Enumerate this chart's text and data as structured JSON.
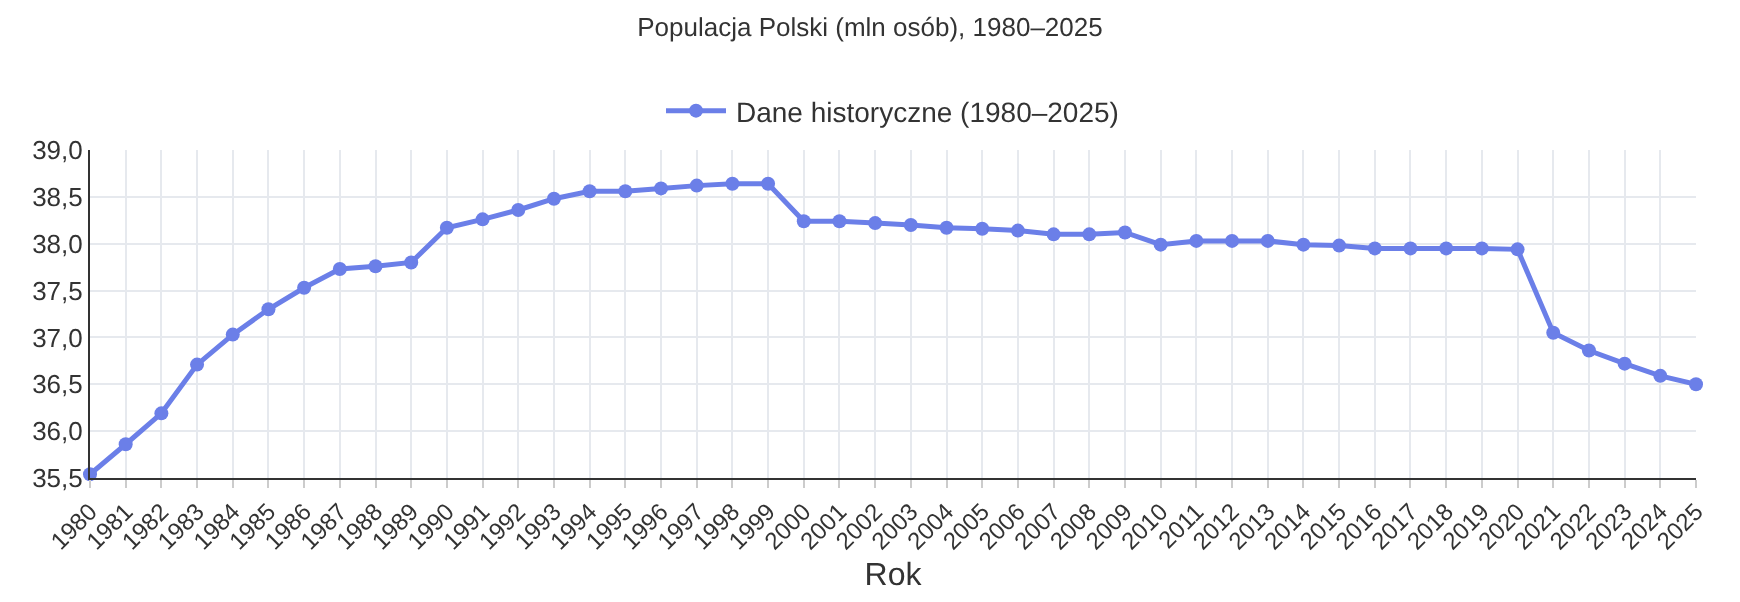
{
  "chart_data": {
    "type": "line",
    "title": "Populacja Polski (mln osób), 1980–2025",
    "xlabel": "Rok",
    "x": [
      1980,
      1981,
      1982,
      1983,
      1984,
      1985,
      1986,
      1987,
      1988,
      1989,
      1990,
      1991,
      1992,
      1993,
      1994,
      1995,
      1996,
      1997,
      1998,
      1999,
      2000,
      2001,
      2002,
      2003,
      2004,
      2005,
      2006,
      2007,
      2008,
      2009,
      2010,
      2011,
      2012,
      2013,
      2014,
      2015,
      2016,
      2017,
      2018,
      2019,
      2020,
      2021,
      2022,
      2023,
      2024,
      2025
    ],
    "series": [
      {
        "name": "Dane historyczne (1980–2025)",
        "color": "#6b7fe8",
        "values": [
          35.54,
          35.86,
          36.19,
          36.71,
          37.03,
          37.3,
          37.53,
          37.73,
          37.76,
          37.8,
          38.17,
          38.26,
          38.36,
          38.48,
          38.56,
          38.56,
          38.59,
          38.62,
          38.64,
          38.64,
          38.24,
          38.24,
          38.22,
          38.2,
          38.17,
          38.16,
          38.14,
          38.1,
          38.1,
          38.12,
          37.99,
          38.03,
          38.03,
          38.03,
          37.99,
          37.98,
          37.95,
          37.95,
          37.95,
          37.95,
          37.94,
          37.05,
          36.86,
          36.72,
          36.59,
          36.5
        ]
      }
    ],
    "xlim": [
      1980,
      2025
    ],
    "xticks": [
      1980,
      1981,
      1982,
      1983,
      1984,
      1985,
      1986,
      1987,
      1988,
      1989,
      1990,
      1991,
      1992,
      1993,
      1994,
      1995,
      1996,
      1997,
      1998,
      1999,
      2000,
      2001,
      2002,
      2003,
      2004,
      2005,
      2006,
      2007,
      2008,
      2009,
      2010,
      2011,
      2012,
      2013,
      2014,
      2015,
      2016,
      2017,
      2018,
      2019,
      2020,
      2021,
      2022,
      2023,
      2024,
      2025
    ],
    "ylim": [
      35.5,
      39.0
    ],
    "yticks": [
      {
        "value": 35.5,
        "label": "35,5"
      },
      {
        "value": 36.0,
        "label": "36,0"
      },
      {
        "value": 36.5,
        "label": "36,5"
      },
      {
        "value": 37.0,
        "label": "37,0"
      },
      {
        "value": 37.5,
        "label": "37,5"
      },
      {
        "value": 38.0,
        "label": "38,0"
      },
      {
        "value": 38.5,
        "label": "38,5"
      },
      {
        "value": 39.0,
        "label": "39,0"
      }
    ],
    "grid": true,
    "legend": "top",
    "marker": "circle",
    "line_style": "solid"
  }
}
